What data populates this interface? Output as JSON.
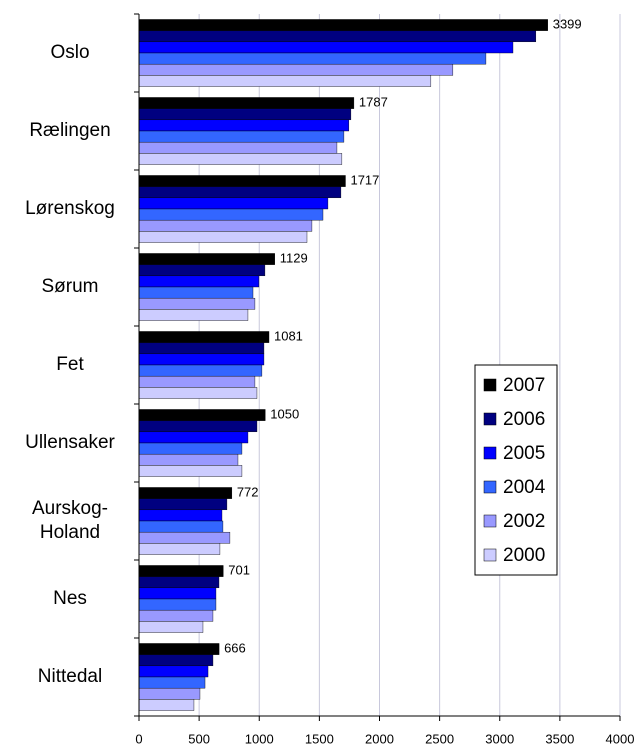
{
  "chart_data": {
    "type": "bar",
    "orientation": "horizontal",
    "categories": [
      "Oslo",
      "Rælingen",
      "Lørenskog",
      "Sørum",
      "Fet",
      "Ullensaker",
      "Aurskog-Holand",
      "Nes",
      "Nittedal"
    ],
    "series": [
      {
        "name": "2007",
        "color": "#000000",
        "values": [
          3399,
          1787,
          1717,
          1129,
          1081,
          1050,
          772,
          701,
          666
        ]
      },
      {
        "name": "2006",
        "color": "#000080",
        "values": [
          3300,
          1762,
          1679,
          1047,
          1039,
          981,
          731,
          665,
          615
        ]
      },
      {
        "name": "2005",
        "color": "#0000ff",
        "values": [
          3110,
          1745,
          1571,
          997,
          1039,
          906,
          690,
          640,
          574
        ]
      },
      {
        "name": "2004",
        "color": "#3366ff",
        "values": [
          2885,
          1704,
          1530,
          948,
          1022,
          856,
          698,
          640,
          549
        ]
      },
      {
        "name": "2002",
        "color": "#9999ff",
        "values": [
          2610,
          1646,
          1438,
          964,
          964,
          823,
          756,
          615,
          507
        ]
      },
      {
        "name": "2000",
        "color": "#ccccff",
        "values": [
          2427,
          1687,
          1397,
          906,
          981,
          856,
          673,
          532,
          457
        ]
      }
    ],
    "xlim": [
      0,
      4000
    ],
    "xticks": [
      0,
      500,
      1000,
      1500,
      2000,
      2500,
      3000,
      3500,
      4000
    ],
    "grid": true
  }
}
